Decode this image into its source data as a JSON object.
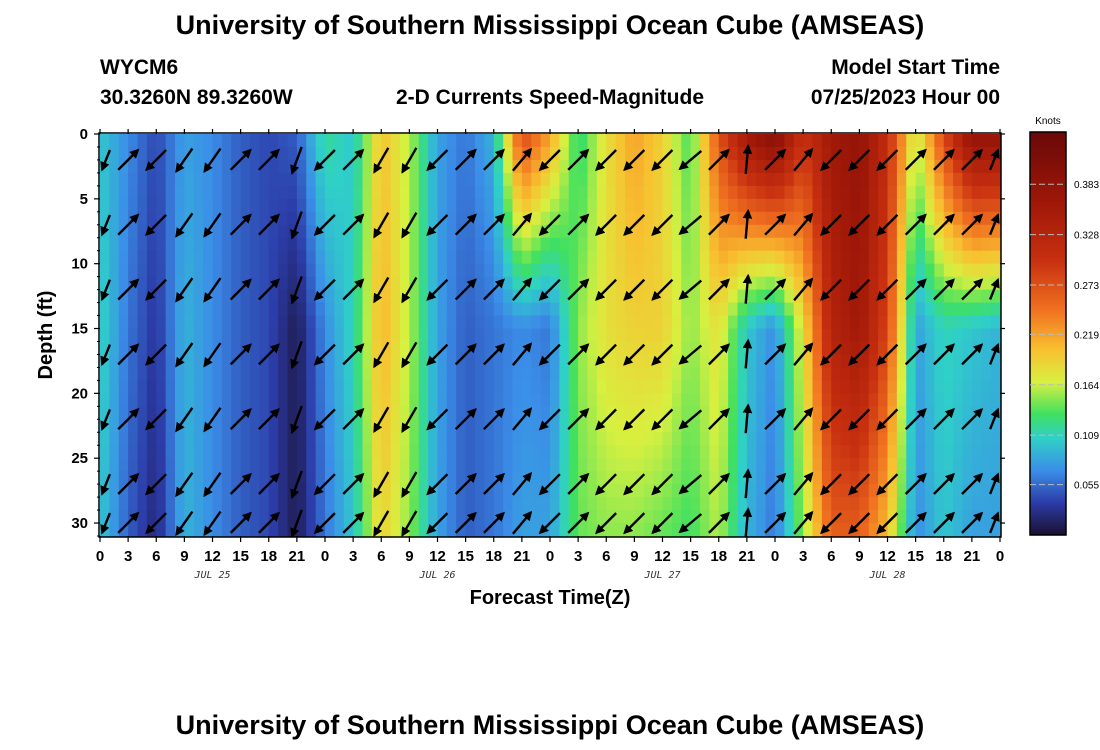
{
  "header": {
    "title": "University of Southern Mississippi Ocean Cube (AMSEAS)",
    "station_id": "WYCM6",
    "coords": "30.3260N  89.3260W",
    "subtitle": "2-D Currents Speed-Magnitude",
    "model_start_label": "Model Start Time",
    "model_start_value": "07/25/2023 Hour 00"
  },
  "footer": {
    "title": "University of Southern Mississippi Ocean Cube (AMSEAS)"
  },
  "chart_data": {
    "type": "heatmap",
    "title": "2-D Currents Speed-Magnitude",
    "xlabel": "Forecast Time(Z)",
    "ylabel": "Depth (ft)",
    "x_hours": [
      0,
      96
    ],
    "y_depth_ft": [
      0,
      31
    ],
    "xtick_labels": [
      "0",
      "3",
      "6",
      "9",
      "12",
      "15",
      "18",
      "21",
      "0",
      "3",
      "6",
      "9",
      "12",
      "15",
      "18",
      "21",
      "0",
      "3",
      "6",
      "9",
      "12",
      "15",
      "18",
      "21",
      "0",
      "3",
      "6",
      "9",
      "12",
      "15",
      "18",
      "21",
      "0"
    ],
    "ytick_labels": [
      "0",
      "5",
      "10",
      "15",
      "20",
      "25",
      "30"
    ],
    "ytick_values": [
      0,
      5,
      10,
      15,
      20,
      25,
      30
    ],
    "day_labels": [
      {
        "text": "JUL 25",
        "hour": 12
      },
      {
        "text": "JUL 26",
        "hour": 36
      },
      {
        "text": "JUL 27",
        "hour": 60
      },
      {
        "text": "JUL 28",
        "hour": 84
      }
    ],
    "colorbar": {
      "unit": "Knots",
      "min": 0,
      "max": 0.44,
      "labels": [
        "0.383",
        "0.328",
        "0.273",
        "0.219",
        "0.164",
        "0.109",
        "0.055"
      ],
      "label_values": [
        0.383,
        0.328,
        0.273,
        0.219,
        0.164,
        0.109,
        0.055
      ]
    },
    "speed_profile_knots": [
      {
        "hour": 0,
        "surface": 0.1,
        "mid": 0.11,
        "bottom": 0.1
      },
      {
        "hour": 3,
        "surface": 0.07,
        "mid": 0.06,
        "bottom": 0.05
      },
      {
        "hour": 6,
        "surface": 0.04,
        "mid": 0.03,
        "bottom": 0.02
      },
      {
        "hour": 9,
        "surface": 0.08,
        "mid": 0.09,
        "bottom": 0.09
      },
      {
        "hour": 12,
        "surface": 0.07,
        "mid": 0.07,
        "bottom": 0.07
      },
      {
        "hour": 15,
        "surface": 0.05,
        "mid": 0.05,
        "bottom": 0.05
      },
      {
        "hour": 18,
        "surface": 0.04,
        "mid": 0.04,
        "bottom": 0.04
      },
      {
        "hour": 21,
        "surface": 0.05,
        "mid": 0.01,
        "bottom": 0.01
      },
      {
        "hour": 24,
        "surface": 0.12,
        "mid": 0.07,
        "bottom": 0.06
      },
      {
        "hour": 27,
        "surface": 0.1,
        "mid": 0.11,
        "bottom": 0.1
      },
      {
        "hour": 30,
        "surface": 0.2,
        "mid": 0.21,
        "bottom": 0.19
      },
      {
        "hour": 33,
        "surface": 0.16,
        "mid": 0.16,
        "bottom": 0.15
      },
      {
        "hour": 36,
        "surface": 0.08,
        "mid": 0.08,
        "bottom": 0.08
      },
      {
        "hour": 39,
        "surface": 0.06,
        "mid": 0.05,
        "bottom": 0.05
      },
      {
        "hour": 42,
        "surface": 0.09,
        "mid": 0.06,
        "bottom": 0.06
      },
      {
        "hour": 45,
        "surface": 0.28,
        "mid": 0.07,
        "bottom": 0.08
      },
      {
        "hour": 48,
        "surface": 0.22,
        "mid": 0.06,
        "bottom": 0.08
      },
      {
        "hour": 51,
        "surface": 0.12,
        "mid": 0.15,
        "bottom": 0.14
      },
      {
        "hour": 54,
        "surface": 0.18,
        "mid": 0.18,
        "bottom": 0.15
      },
      {
        "hour": 57,
        "surface": 0.22,
        "mid": 0.19,
        "bottom": 0.15
      },
      {
        "hour": 60,
        "surface": 0.19,
        "mid": 0.19,
        "bottom": 0.14
      },
      {
        "hour": 63,
        "surface": 0.13,
        "mid": 0.15,
        "bottom": 0.13
      },
      {
        "hour": 66,
        "surface": 0.27,
        "mid": 0.18,
        "bottom": 0.16
      },
      {
        "hour": 69,
        "surface": 0.36,
        "mid": 0.1,
        "bottom": 0.09
      },
      {
        "hour": 72,
        "surface": 0.4,
        "mid": 0.07,
        "bottom": 0.06
      },
      {
        "hour": 75,
        "surface": 0.3,
        "mid": 0.18,
        "bottom": 0.15
      },
      {
        "hour": 78,
        "surface": 0.36,
        "mid": 0.33,
        "bottom": 0.26
      },
      {
        "hour": 81,
        "surface": 0.38,
        "mid": 0.36,
        "bottom": 0.26
      },
      {
        "hour": 84,
        "surface": 0.31,
        "mid": 0.28,
        "bottom": 0.2
      },
      {
        "hour": 87,
        "surface": 0.16,
        "mid": 0.08,
        "bottom": 0.07
      },
      {
        "hour": 90,
        "surface": 0.28,
        "mid": 0.11,
        "bottom": 0.1
      },
      {
        "hour": 93,
        "surface": 0.38,
        "mid": 0.1,
        "bottom": 0.08
      },
      {
        "hour": 96,
        "surface": 0.38,
        "mid": 0.09,
        "bottom": 0.08
      }
    ],
    "arrow_directions_deg": [
      {
        "hour": 0,
        "deg": 225
      },
      {
        "hour": 3,
        "deg": 45
      },
      {
        "hour": 6,
        "deg": 225
      },
      {
        "hour": 9,
        "deg": 215
      },
      {
        "hour": 12,
        "deg": 215
      },
      {
        "hour": 15,
        "deg": 45
      },
      {
        "hour": 18,
        "deg": 45
      },
      {
        "hour": 21,
        "deg": 200
      },
      {
        "hour": 24,
        "deg": 225
      },
      {
        "hour": 27,
        "deg": 45
      },
      {
        "hour": 30,
        "deg": 210
      },
      {
        "hour": 33,
        "deg": 210
      },
      {
        "hour": 36,
        "deg": 225
      },
      {
        "hour": 39,
        "deg": 45
      },
      {
        "hour": 42,
        "deg": 45
      },
      {
        "hour": 45,
        "deg": 40
      },
      {
        "hour": 48,
        "deg": 225
      },
      {
        "hour": 51,
        "deg": 45
      },
      {
        "hour": 54,
        "deg": 225
      },
      {
        "hour": 57,
        "deg": 225
      },
      {
        "hour": 60,
        "deg": 225
      },
      {
        "hour": 63,
        "deg": 230
      },
      {
        "hour": 66,
        "deg": 45
      },
      {
        "hour": 69,
        "deg": 5
      },
      {
        "hour": 72,
        "deg": 45
      },
      {
        "hour": 75,
        "deg": 40
      },
      {
        "hour": 78,
        "deg": 225
      },
      {
        "hour": 81,
        "deg": 225
      },
      {
        "hour": 84,
        "deg": 225
      },
      {
        "hour": 87,
        "deg": 45
      },
      {
        "hour": 90,
        "deg": 45
      },
      {
        "hour": 93,
        "deg": 45
      },
      {
        "hour": 96,
        "deg": 45
      }
    ]
  }
}
